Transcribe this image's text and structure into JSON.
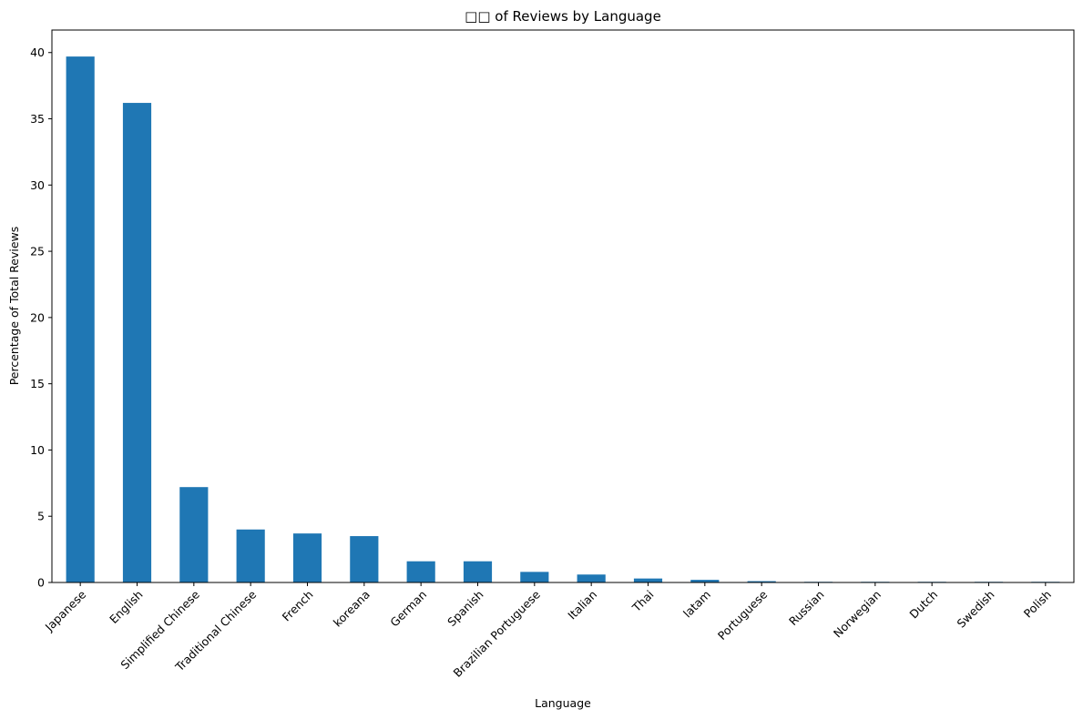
{
  "chart_data": {
    "type": "bar",
    "title": "□□ of Reviews by Language",
    "xlabel": "Language",
    "ylabel": "Percentage of Total Reviews",
    "ylim": [
      0,
      41.7
    ],
    "yticks": [
      "0",
      "5",
      "10",
      "15",
      "20",
      "25",
      "30",
      "35",
      "40"
    ],
    "grid": false,
    "bar_color": "#1f77b4",
    "categories": [
      "Japanese",
      "English",
      "Simplified Chinese",
      "Traditional Chinese",
      "French",
      "koreana",
      "German",
      "Spanish",
      "Brazilian Portuguese",
      "Italian",
      "Thai",
      "latam",
      "Portuguese",
      "Russian",
      "Norwegian",
      "Dutch",
      "Swedish",
      "Polish"
    ],
    "values": [
      39.7,
      36.2,
      7.2,
      4.0,
      3.7,
      3.5,
      1.6,
      1.6,
      0.8,
      0.6,
      0.3,
      0.2,
      0.1,
      0.05,
      0.05,
      0.05,
      0.05,
      0.05
    ]
  }
}
